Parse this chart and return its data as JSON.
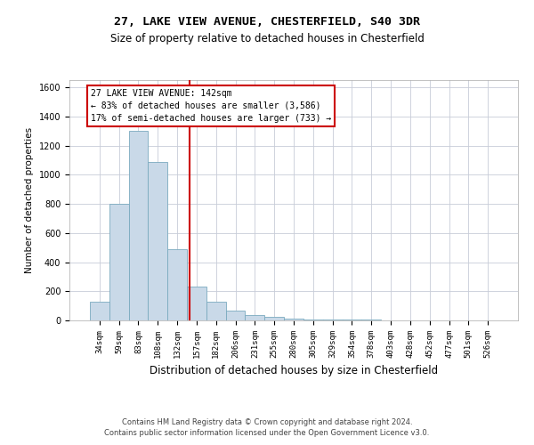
{
  "title1": "27, LAKE VIEW AVENUE, CHESTERFIELD, S40 3DR",
  "title2": "Size of property relative to detached houses in Chesterfield",
  "xlabel": "Distribution of detached houses by size in Chesterfield",
  "ylabel": "Number of detached properties",
  "footer1": "Contains HM Land Registry data © Crown copyright and database right 2024.",
  "footer2": "Contains public sector information licensed under the Open Government Licence v3.0.",
  "bin_labels": [
    "34sqm",
    "59sqm",
    "83sqm",
    "108sqm",
    "132sqm",
    "157sqm",
    "182sqm",
    "206sqm",
    "231sqm",
    "255sqm",
    "280sqm",
    "305sqm",
    "329sqm",
    "354sqm",
    "378sqm",
    "403sqm",
    "428sqm",
    "452sqm",
    "477sqm",
    "501sqm",
    "526sqm"
  ],
  "bar_values": [
    130,
    800,
    1300,
    1090,
    490,
    230,
    130,
    65,
    35,
    25,
    15,
    5,
    5,
    5,
    5,
    0,
    0,
    0,
    0,
    0,
    0
  ],
  "bar_color": "#c9d9e8",
  "bar_edge_color": "#7aaabf",
  "property_line_x": 4.62,
  "property_line_color": "#cc0000",
  "annotation_line1": "27 LAKE VIEW AVENUE: 142sqm",
  "annotation_line2": "← 83% of detached houses are smaller (3,586)",
  "annotation_line3": "17% of semi-detached houses are larger (733) →",
  "annotation_box_facecolor": "#ffffff",
  "annotation_box_edgecolor": "#cc0000",
  "ylim": [
    0,
    1650
  ],
  "yticks": [
    0,
    200,
    400,
    600,
    800,
    1000,
    1200,
    1400,
    1600
  ],
  "background_color": "#ffffff",
  "grid_color": "#c8ccd8",
  "title1_fontsize": 9.5,
  "title2_fontsize": 8.5,
  "ylabel_fontsize": 7.5,
  "xlabel_fontsize": 8.5,
  "tick_fontsize": 7.0,
  "xtick_fontsize": 6.5,
  "annotation_fontsize": 7.0,
  "footer_fontsize": 6.0
}
